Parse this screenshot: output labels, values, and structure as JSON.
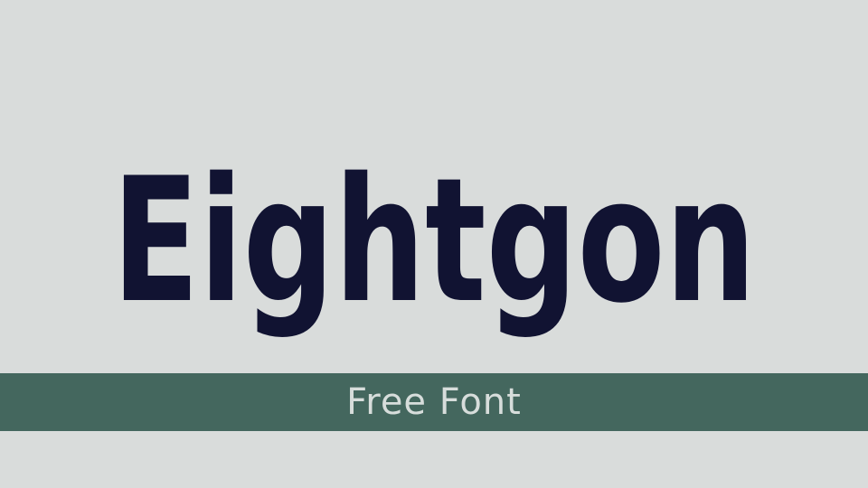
{
  "title": "Eightgon",
  "banner": {
    "label": "Free Font"
  },
  "colors": {
    "background": "#d9dcdb",
    "title": "#111332",
    "banner": "#44675e",
    "banner_text": "#d7dddb"
  }
}
